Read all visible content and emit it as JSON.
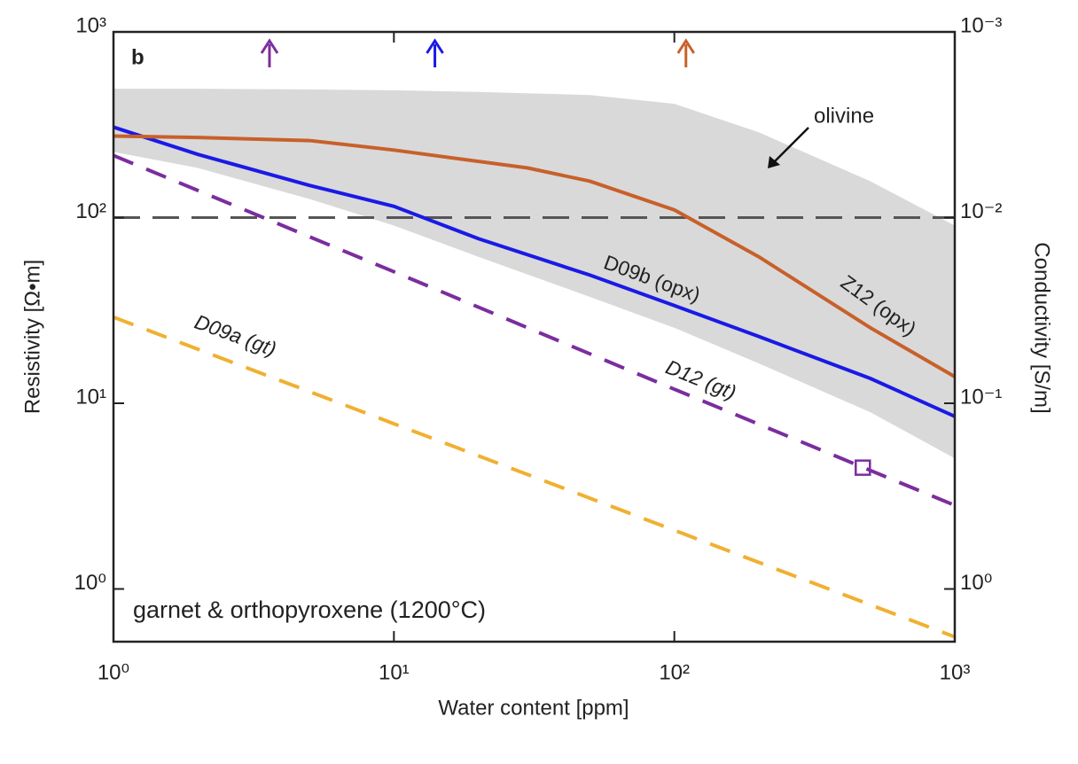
{
  "chart_data": {
    "type": "line",
    "panel_label": "b",
    "annotation": "garnet & orthopyroxene (1200°C)",
    "x_label": "Water content [ppm]",
    "y_label": "Resistivity [Ω•m]",
    "y2_label": "Conductivity [S/m]",
    "log_x": true,
    "log_y": true,
    "xlim": [
      1,
      1000
    ],
    "xticks": [
      {
        "value": 1,
        "label": "10⁰"
      },
      {
        "value": 10,
        "label": "10¹"
      },
      {
        "value": 100,
        "label": "10²"
      },
      {
        "value": 1000,
        "label": "10³"
      }
    ],
    "ylim": [
      0.52,
      1000
    ],
    "yticks": [
      {
        "value": 1,
        "label": "10⁰"
      },
      {
        "value": 10,
        "label": "10¹"
      },
      {
        "value": 100,
        "label": "10²"
      },
      {
        "value": 1000,
        "label": "10³"
      }
    ],
    "y2lim": [
      1.923,
      0.001
    ],
    "y2ticks": [
      {
        "value": 1,
        "label": "10⁰"
      },
      {
        "value": 0.1,
        "label": "10⁻¹"
      },
      {
        "value": 0.01,
        "label": "10⁻²"
      },
      {
        "value": 0.001,
        "label": "10⁻³"
      }
    ],
    "band": {
      "name": "olivine",
      "color": "#d9d9d9",
      "x": [
        1,
        2,
        5,
        10,
        20,
        50,
        100,
        200,
        500,
        1000
      ],
      "upper": [
        494,
        494,
        490,
        485,
        475,
        457,
        410,
        288,
        157,
        90.6
      ],
      "lower": [
        226,
        185,
        126,
        90.6,
        61.5,
        37.4,
        25.5,
        16.4,
        8.95,
        5.05
      ]
    },
    "hline": {
      "value": 100,
      "color": "#555555"
    },
    "series": [
      {
        "name": "D09b (opx)",
        "color": "#1a1ae6",
        "dashed": false,
        "x": [
          1,
          2,
          5,
          10,
          20,
          50,
          100,
          200,
          500,
          1000
        ],
        "values": [
          307,
          219,
          149,
          115,
          77,
          49,
          33.6,
          22.9,
          13.6,
          8.5
        ]
      },
      {
        "name": "Z12 (opx)",
        "color": "#c8602a",
        "dashed": false,
        "x": [
          1,
          2,
          5,
          10,
          30,
          50,
          100,
          200,
          500,
          1000
        ],
        "values": [
          275,
          270,
          260,
          231,
          185,
          157,
          110,
          61.5,
          25.5,
          13.9
        ]
      },
      {
        "name": "D12 (gt)",
        "color": "#7b2d9e",
        "dashed": true,
        "x": [
          1,
          10,
          100,
          1000
        ],
        "values": [
          216,
          51.1,
          11.9,
          2.82
        ]
      },
      {
        "name": "D09a (gt)",
        "color": "#f0b030",
        "dashed": true,
        "x": [
          1,
          10,
          100,
          1000
        ],
        "values": [
          29.1,
          7.76,
          2.07,
          0.552
        ]
      }
    ],
    "arrows": [
      {
        "x": 3.6,
        "color": "#7b2d9e"
      },
      {
        "x": 14,
        "color": "#1a1ae6"
      },
      {
        "x": 110,
        "color": "#c8602a"
      }
    ],
    "marker": {
      "x": 470,
      "y": 4.5,
      "color": "#7b2d9e"
    }
  }
}
